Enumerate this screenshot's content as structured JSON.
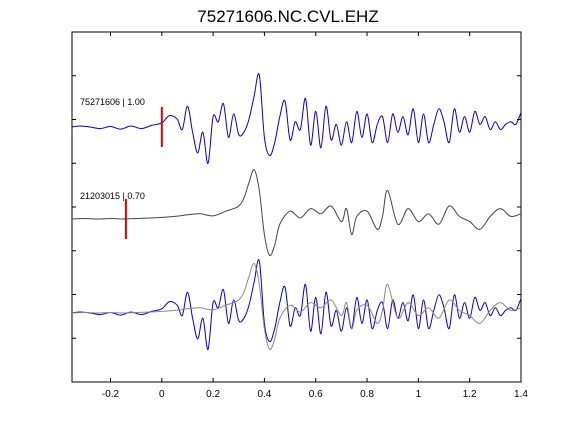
{
  "chart_data": {
    "type": "line",
    "title": "75271606.NC.CVL.EHZ",
    "xlabel": "",
    "ylabel": "",
    "xlim": [
      -0.35,
      1.4
    ],
    "xticks": [
      -0.2,
      0,
      0.2,
      0.4,
      0.6,
      0.8,
      1,
      1.2,
      1.4
    ],
    "xtick_labels": [
      "-0.2",
      "0",
      "0.2",
      "0.4",
      "0.6",
      "0.8",
      "1",
      "1.2",
      "1.4"
    ],
    "y_tick_count": 7,
    "grid": false,
    "colors": {
      "primary": "#0000cc",
      "secondary": "#444444",
      "overlay": "#888888",
      "pick": "#dd0000"
    },
    "traces": [
      {
        "label": "75271606 | 1.00",
        "color": "#0000cc",
        "pick_time": 0.0
      },
      {
        "label": "21203015 | 0.70",
        "color": "#444444",
        "pick_time": -0.14
      }
    ],
    "series": [
      {
        "row": "top",
        "color": "#0000cc",
        "x": [
          -0.35,
          -0.32,
          -0.28,
          -0.24,
          -0.2,
          -0.16,
          -0.12,
          -0.08,
          -0.04,
          0,
          0.03,
          0.06,
          0.08,
          0.1,
          0.12,
          0.14,
          0.16,
          0.18,
          0.2,
          0.22,
          0.24,
          0.26,
          0.28,
          0.3,
          0.32,
          0.34,
          0.36,
          0.38,
          0.4,
          0.42,
          0.44,
          0.46,
          0.48,
          0.5,
          0.52,
          0.54,
          0.56,
          0.58,
          0.6,
          0.62,
          0.64,
          0.66,
          0.68,
          0.7,
          0.72,
          0.74,
          0.76,
          0.78,
          0.8,
          0.82,
          0.84,
          0.86,
          0.88,
          0.9,
          0.92,
          0.94,
          0.96,
          0.98,
          1,
          1.02,
          1.04,
          1.06,
          1.08,
          1.1,
          1.12,
          1.14,
          1.16,
          1.18,
          1.2,
          1.22,
          1.24,
          1.26,
          1.28,
          1.3,
          1.32,
          1.34,
          1.36,
          1.38,
          1.4
        ],
        "y": [
          0,
          0.02,
          0,
          -0.03,
          0.01,
          -0.04,
          0.02,
          -0.03,
          0.03,
          0.08,
          0.22,
          0.15,
          -0.05,
          0.4,
          -0.1,
          -0.5,
          -0.1,
          -0.7,
          0.2,
          0.1,
          0.45,
          -0.2,
          0.25,
          -0.15,
          -0.1,
          0.15,
          0.6,
          1.0,
          -0.2,
          -0.55,
          -0.3,
          0.2,
          0.5,
          -0.25,
          0.1,
          -0.05,
          0.55,
          -0.35,
          0.3,
          -0.4,
          0.4,
          -0.25,
          0.05,
          -0.35,
          0.1,
          -0.3,
          0.3,
          -0.2,
          0.25,
          -0.3,
          0.05,
          0.2,
          -0.3,
          0.25,
          -0.1,
          0.2,
          -0.15,
          0.35,
          -0.3,
          0.25,
          -0.3,
          0.05,
          0.35,
          0.1,
          -0.3,
          0.35,
          -0.1,
          0.2,
          -0.1,
          0.3,
          0.05,
          0.2,
          -0.05,
          0.1,
          -0.05,
          0.05,
          0.1,
          0.05,
          0.28
        ]
      },
      {
        "row": "middle",
        "color": "#444444",
        "x": [
          -0.35,
          -0.3,
          -0.25,
          -0.2,
          -0.15,
          -0.1,
          -0.05,
          0,
          0.05,
          0.1,
          0.15,
          0.2,
          0.25,
          0.28,
          0.3,
          0.32,
          0.34,
          0.36,
          0.38,
          0.4,
          0.42,
          0.44,
          0.46,
          0.5,
          0.54,
          0.58,
          0.62,
          0.66,
          0.7,
          0.72,
          0.74,
          0.76,
          0.8,
          0.84,
          0.86,
          0.88,
          0.92,
          0.96,
          1,
          1.04,
          1.08,
          1.12,
          1.16,
          1.2,
          1.24,
          1.28,
          1.32,
          1.36,
          1.4
        ],
        "y": [
          0,
          0.01,
          0,
          0.01,
          0,
          0.01,
          0.02,
          0.03,
          0.05,
          0.08,
          0.1,
          0.06,
          0.15,
          0.2,
          0.25,
          0.4,
          0.7,
          0.95,
          0.55,
          -0.3,
          -0.7,
          -0.5,
          -0.1,
          0.15,
          0.02,
          0.2,
          0.1,
          0.25,
          -0.05,
          0.2,
          -0.3,
          0.05,
          0.15,
          -0.2,
          0.05,
          0.55,
          -0.1,
          0.2,
          -0.05,
          0.1,
          -0.1,
          0.25,
          0.05,
          -0.05,
          -0.2,
          0.05,
          0.2,
          0.05,
          0.1
        ]
      },
      {
        "row": "bottom",
        "color": "#0000cc",
        "x": [
          -0.35,
          -0.32,
          -0.28,
          -0.24,
          -0.2,
          -0.16,
          -0.12,
          -0.08,
          -0.04,
          0,
          0.03,
          0.06,
          0.08,
          0.1,
          0.12,
          0.14,
          0.16,
          0.18,
          0.2,
          0.22,
          0.24,
          0.26,
          0.28,
          0.3,
          0.32,
          0.34,
          0.36,
          0.38,
          0.4,
          0.42,
          0.44,
          0.46,
          0.48,
          0.5,
          0.52,
          0.54,
          0.56,
          0.58,
          0.6,
          0.62,
          0.64,
          0.66,
          0.68,
          0.7,
          0.72,
          0.74,
          0.76,
          0.78,
          0.8,
          0.82,
          0.84,
          0.86,
          0.88,
          0.9,
          0.92,
          0.94,
          0.96,
          0.98,
          1,
          1.02,
          1.04,
          1.06,
          1.08,
          1.1,
          1.12,
          1.14,
          1.16,
          1.18,
          1.2,
          1.22,
          1.24,
          1.26,
          1.28,
          1.3,
          1.32,
          1.34,
          1.36,
          1.38,
          1.4
        ],
        "y": [
          0,
          0.02,
          0,
          -0.03,
          0.01,
          -0.04,
          0.02,
          -0.03,
          0.03,
          0.08,
          0.22,
          0.15,
          -0.05,
          0.4,
          -0.1,
          -0.5,
          -0.1,
          -0.7,
          0.2,
          0.1,
          0.45,
          -0.2,
          0.25,
          -0.15,
          -0.1,
          0.15,
          0.6,
          1.0,
          -0.2,
          -0.55,
          -0.3,
          0.2,
          0.5,
          -0.25,
          0.1,
          -0.05,
          0.55,
          -0.35,
          0.3,
          -0.4,
          0.4,
          -0.25,
          0.05,
          -0.35,
          0.1,
          -0.3,
          0.3,
          -0.2,
          0.25,
          -0.3,
          0.05,
          0.2,
          -0.3,
          0.25,
          -0.1,
          0.2,
          -0.15,
          0.35,
          -0.3,
          0.25,
          -0.3,
          0.05,
          0.35,
          0.1,
          -0.3,
          0.35,
          -0.1,
          0.2,
          -0.1,
          0.3,
          0.05,
          0.2,
          -0.05,
          0.1,
          -0.05,
          0.05,
          0.1,
          0.05,
          0.28
        ]
      },
      {
        "row": "bottom",
        "color": "#888888",
        "x": [
          -0.35,
          -0.3,
          -0.25,
          -0.2,
          -0.15,
          -0.1,
          -0.05,
          0,
          0.05,
          0.1,
          0.15,
          0.2,
          0.25,
          0.28,
          0.3,
          0.32,
          0.34,
          0.36,
          0.38,
          0.4,
          0.42,
          0.44,
          0.46,
          0.5,
          0.54,
          0.58,
          0.62,
          0.66,
          0.7,
          0.72,
          0.74,
          0.76,
          0.8,
          0.84,
          0.86,
          0.88,
          0.92,
          0.96,
          1,
          1.04,
          1.08,
          1.12,
          1.16,
          1.2,
          1.24,
          1.28,
          1.32,
          1.36,
          1.4
        ],
        "y": [
          0,
          0.01,
          0,
          0.01,
          0,
          0.01,
          0.02,
          0.03,
          0.05,
          0.08,
          0.1,
          0.06,
          0.15,
          0.2,
          0.25,
          0.4,
          0.7,
          0.95,
          0.55,
          -0.3,
          -0.7,
          -0.5,
          -0.1,
          0.15,
          0.02,
          0.2,
          0.1,
          0.25,
          -0.05,
          0.2,
          -0.3,
          0.05,
          0.15,
          -0.2,
          0.05,
          0.55,
          -0.1,
          0.2,
          -0.05,
          0.1,
          -0.1,
          0.25,
          0.05,
          -0.05,
          -0.2,
          0.05,
          0.2,
          0.05,
          0.1
        ]
      }
    ]
  }
}
